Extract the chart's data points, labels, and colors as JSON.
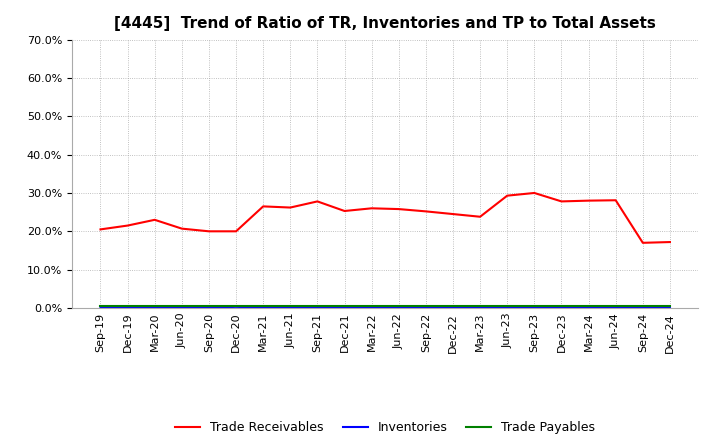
{
  "title": "[4445]  Trend of Ratio of TR, Inventories and TP to Total Assets",
  "x_labels": [
    "Sep-19",
    "Dec-19",
    "Mar-20",
    "Jun-20",
    "Sep-20",
    "Dec-20",
    "Mar-21",
    "Jun-21",
    "Sep-21",
    "Dec-21",
    "Mar-22",
    "Jun-22",
    "Sep-22",
    "Dec-22",
    "Mar-23",
    "Jun-23",
    "Sep-23",
    "Dec-23",
    "Mar-24",
    "Jun-24",
    "Sep-24",
    "Dec-24"
  ],
  "trade_receivables": [
    0.205,
    0.215,
    0.23,
    0.207,
    0.2,
    0.2,
    0.265,
    0.262,
    0.278,
    0.253,
    0.26,
    0.258,
    0.252,
    0.245,
    0.238,
    0.293,
    0.3,
    0.278,
    0.28,
    0.281,
    0.17,
    0.172
  ],
  "inventories": [
    0.001,
    0.001,
    0.001,
    0.001,
    0.001,
    0.003,
    0.001,
    0.001,
    0.001,
    0.001,
    0.001,
    0.001,
    0.001,
    0.001,
    0.001,
    0.001,
    0.001,
    0.001,
    0.001,
    0.001,
    0.001,
    0.001
  ],
  "trade_payables": [
    0.005,
    0.005,
    0.005,
    0.005,
    0.005,
    0.005,
    0.005,
    0.005,
    0.005,
    0.005,
    0.005,
    0.005,
    0.005,
    0.005,
    0.005,
    0.005,
    0.005,
    0.005,
    0.005,
    0.005,
    0.005,
    0.005
  ],
  "tr_color": "#FF0000",
  "inv_color": "#0000FF",
  "tp_color": "#008000",
  "ylim": [
    0.0,
    0.7
  ],
  "yticks": [
    0.0,
    0.1,
    0.2,
    0.3,
    0.4,
    0.5,
    0.6,
    0.7
  ],
  "background_color": "#FFFFFF",
  "grid_color": "#999999",
  "legend_labels": [
    "Trade Receivables",
    "Inventories",
    "Trade Payables"
  ],
  "title_fontsize": 11,
  "tick_fontsize": 8,
  "legend_fontsize": 9
}
